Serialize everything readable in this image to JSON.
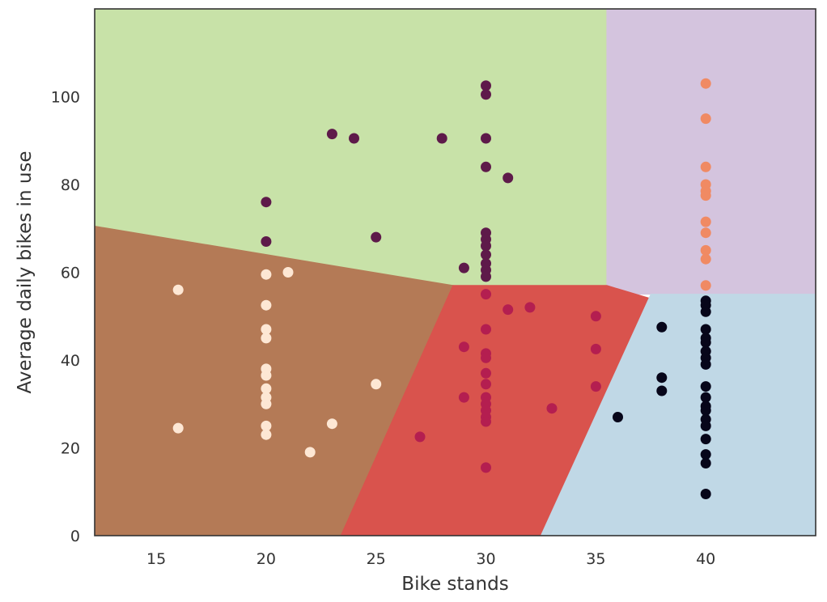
{
  "chart_data": {
    "type": "scatter",
    "title": "",
    "xlabel": "Bike stands",
    "ylabel": "Average daily bikes in use",
    "xlim": [
      12.2,
      45.0
    ],
    "ylim": [
      0,
      120
    ],
    "xticks": [
      15,
      20,
      25,
      30,
      35,
      40
    ],
    "yticks": [
      0,
      20,
      40,
      60,
      80,
      100
    ],
    "grid": false,
    "legend": "none",
    "background_regions": [
      {
        "cluster": "green",
        "color": "#c8e2a8",
        "polygon": [
          [
            12.2,
            120
          ],
          [
            35.5,
            120
          ],
          [
            35.5,
            56.5
          ],
          [
            28.5,
            57
          ],
          [
            12.2,
            70.5
          ]
        ]
      },
      {
        "cluster": "purple",
        "color": "#d4c4de",
        "polygon": [
          [
            35.5,
            120
          ],
          [
            45.0,
            120
          ],
          [
            45.0,
            55
          ],
          [
            35.5,
            55
          ]
        ]
      },
      {
        "cluster": "brown",
        "color": "#b47a56",
        "polygon": [
          [
            12.2,
            70.5
          ],
          [
            28.5,
            57
          ],
          [
            23.4,
            0
          ],
          [
            12.2,
            0
          ]
        ]
      },
      {
        "cluster": "red",
        "color": "#d9534d",
        "polygon": [
          [
            28.5,
            57
          ],
          [
            35.5,
            57
          ],
          [
            37.5,
            54
          ],
          [
            32.5,
            0
          ],
          [
            23.4,
            0
          ]
        ]
      },
      {
        "cluster": "blue",
        "color": "#c0d8e6",
        "polygon": [
          [
            37.5,
            55
          ],
          [
            45.0,
            55
          ],
          [
            45.0,
            0
          ],
          [
            32.5,
            0
          ]
        ]
      }
    ],
    "series": [
      {
        "color": "#fde7d4",
        "points": [
          [
            16,
            56
          ],
          [
            16,
            24.5
          ],
          [
            20,
            59.5
          ],
          [
            20,
            52.5
          ],
          [
            20,
            47
          ],
          [
            20,
            45
          ],
          [
            20,
            38
          ],
          [
            20,
            36.5
          ],
          [
            20,
            33.5
          ],
          [
            20,
            31.5
          ],
          [
            20,
            30
          ],
          [
            20,
            25
          ],
          [
            20,
            23
          ],
          [
            21,
            60
          ],
          [
            22,
            19
          ],
          [
            23,
            25.5
          ],
          [
            25,
            34.5
          ]
        ]
      },
      {
        "color": "#5e1a4a",
        "points": [
          [
            20,
            76
          ],
          [
            20,
            67
          ],
          [
            23,
            91.5
          ],
          [
            24,
            90.5
          ],
          [
            25,
            68
          ],
          [
            28,
            90.5
          ],
          [
            29,
            61
          ],
          [
            30,
            102.5
          ],
          [
            30,
            100.5
          ],
          [
            30,
            90.5
          ],
          [
            30,
            84
          ],
          [
            30,
            69
          ],
          [
            30,
            67.5
          ],
          [
            30,
            66
          ],
          [
            30,
            64
          ],
          [
            30,
            62
          ],
          [
            30,
            60.5
          ],
          [
            30,
            59
          ],
          [
            31,
            81.5
          ]
        ]
      },
      {
        "color": "#b41e50",
        "points": [
          [
            27,
            22.5
          ],
          [
            29,
            43
          ],
          [
            29,
            31.5
          ],
          [
            30,
            55
          ],
          [
            30,
            47
          ],
          [
            30,
            41.5
          ],
          [
            30,
            40.5
          ],
          [
            30,
            37
          ],
          [
            30,
            34.5
          ],
          [
            30,
            31.5
          ],
          [
            30,
            30
          ],
          [
            30,
            28.5
          ],
          [
            30,
            27
          ],
          [
            30,
            26
          ],
          [
            30,
            15.5
          ],
          [
            31,
            51.5
          ],
          [
            32,
            52
          ],
          [
            33,
            29
          ],
          [
            35,
            50
          ],
          [
            35,
            42.5
          ],
          [
            35,
            34
          ]
        ]
      },
      {
        "color": "#f08a63",
        "points": [
          [
            40,
            103
          ],
          [
            40,
            95
          ],
          [
            40,
            84
          ],
          [
            40,
            80
          ],
          [
            40,
            78.5
          ],
          [
            40,
            77.5
          ],
          [
            40,
            71.5
          ],
          [
            40,
            69
          ],
          [
            40,
            65
          ],
          [
            40,
            63
          ],
          [
            40,
            57
          ]
        ]
      },
      {
        "color": "#07061a",
        "points": [
          [
            36,
            27
          ],
          [
            38,
            47.5
          ],
          [
            38,
            36
          ],
          [
            38,
            33
          ],
          [
            40,
            53.5
          ],
          [
            40,
            52.5
          ],
          [
            40,
            51
          ],
          [
            40,
            47
          ],
          [
            40,
            45
          ],
          [
            40,
            44
          ],
          [
            40,
            42
          ],
          [
            40,
            40.5
          ],
          [
            40,
            39
          ],
          [
            40,
            34
          ],
          [
            40,
            31.5
          ],
          [
            40,
            29.5
          ],
          [
            40,
            28.5
          ],
          [
            40,
            26.5
          ],
          [
            40,
            25
          ],
          [
            40,
            22
          ],
          [
            40,
            18.5
          ],
          [
            40,
            16.5
          ],
          [
            40,
            9.5
          ]
        ]
      }
    ]
  }
}
